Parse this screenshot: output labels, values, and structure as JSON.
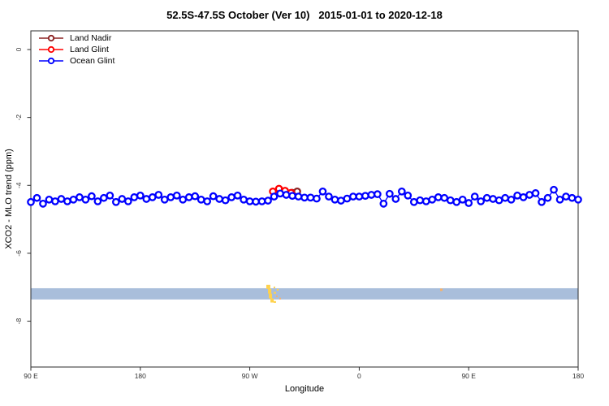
{
  "title": "52.5S-47.5S October (Ver 10)   2015-01-01 to 2020-12-18",
  "x_axis": {
    "label": "Longitude",
    "ticks": [
      {
        "pos": 0,
        "label": "90 E"
      },
      {
        "pos": 90,
        "label": "180"
      },
      {
        "pos": 180,
        "label": "90 W"
      },
      {
        "pos": 270,
        "label": "0"
      },
      {
        "pos": 360,
        "label": "90 E"
      },
      {
        "pos": 450,
        "label": "180"
      }
    ]
  },
  "y_axis": {
    "label": "XCO2 - MLO trend (ppm)",
    "ticks": [
      {
        "value": 0,
        "label": "0"
      },
      {
        "value": -2,
        "label": "-2"
      },
      {
        "value": -4,
        "label": "-4"
      },
      {
        "value": -6,
        "label": "-6"
      },
      {
        "value": -8,
        "label": "-8"
      }
    ]
  },
  "legend": {
    "items": [
      {
        "label": "Land Nadir",
        "color": "#8b2222"
      },
      {
        "label": "Land Glint",
        "color": "#ff0000"
      },
      {
        "label": "Ocean Glint",
        "color": "#0000ff"
      }
    ]
  },
  "chart_data": {
    "type": "scatter",
    "title": "52.5S-47.5S October (Ver 10)   2015-01-01 to 2020-12-18",
    "xlabel": "Longitude",
    "ylabel": "XCO2 - MLO trend (ppm)",
    "xlim": [
      0,
      450
    ],
    "ylim": [
      -9.35,
      0.55
    ],
    "x_axis_note": "degrees eastward from left edge; axis wraps 90E > 180 > 90W > 0 > 90E > 180",
    "grid": false,
    "legend_position": "top-left",
    "series": [
      {
        "name": "Land Nadir",
        "color": "#8b2222",
        "x": [
          215,
          219
        ],
        "values": [
          -4.22,
          -4.18
        ]
      },
      {
        "name": "Land Glint",
        "color": "#ff0000",
        "x": [
          199,
          204,
          209,
          214
        ],
        "values": [
          -4.18,
          -4.1,
          -4.16,
          -4.22
        ]
      },
      {
        "name": "Ocean Glint",
        "color": "#0000ff",
        "x_start": 0,
        "x_step": 5,
        "values": [
          -4.49,
          -4.37,
          -4.54,
          -4.42,
          -4.47,
          -4.4,
          -4.47,
          -4.42,
          -4.35,
          -4.42,
          -4.32,
          -4.47,
          -4.37,
          -4.3,
          -4.49,
          -4.4,
          -4.47,
          -4.35,
          -4.3,
          -4.4,
          -4.35,
          -4.28,
          -4.42,
          -4.35,
          -4.3,
          -4.42,
          -4.35,
          -4.32,
          -4.42,
          -4.47,
          -4.32,
          -4.4,
          -4.44,
          -4.35,
          -4.3,
          -4.42,
          -4.47,
          -4.48,
          -4.47,
          -4.45,
          -4.33,
          -4.24,
          -4.28,
          -4.31,
          -4.33,
          -4.36,
          -4.36,
          -4.39,
          -4.18,
          -4.33,
          -4.42,
          -4.45,
          -4.39,
          -4.33,
          -4.33,
          -4.31,
          -4.28,
          -4.26,
          -4.54,
          -4.25,
          -4.4,
          -4.18,
          -4.3,
          -4.49,
          -4.44,
          -4.47,
          -4.42,
          -4.35,
          -4.37,
          -4.44,
          -4.49,
          -4.42,
          -4.52,
          -4.33,
          -4.47,
          -4.37,
          -4.4,
          -4.44,
          -4.37,
          -4.42,
          -4.3,
          -4.35,
          -4.28,
          -4.23,
          -4.49,
          -4.37,
          -4.13,
          -4.42,
          -4.33,
          -4.37,
          -4.42
        ]
      }
    ],
    "map_strip": {
      "description": "latitude-band map: ocean band with land in yellow",
      "ocean_color": "#a9bedb",
      "land_color": "#ffd24d",
      "land_color2": "#f6b26b",
      "y_top": -7.03,
      "y_bottom": -7.36,
      "land_patches": [
        {
          "x": 193.6,
          "y": -6.93,
          "w": 3.3,
          "h": 0.12,
          "c": 1
        },
        {
          "x": 195.0,
          "y": -7.05,
          "w": 2.7,
          "h": 0.14,
          "c": 1
        },
        {
          "x": 195.6,
          "y": -7.19,
          "w": 2.7,
          "h": 0.14,
          "c": 1
        },
        {
          "x": 197.0,
          "y": -7.33,
          "w": 2.7,
          "h": 0.12,
          "c": 1
        },
        {
          "x": 199.6,
          "y": -6.98,
          "w": 1.3,
          "h": 0.05,
          "c": 1
        },
        {
          "x": 202.3,
          "y": -7.05,
          "w": 1.3,
          "h": 0.05,
          "c": 1
        },
        {
          "x": 199.6,
          "y": -7.14,
          "w": 2.0,
          "h": 0.05,
          "c": 1
        },
        {
          "x": 201.6,
          "y": -7.24,
          "w": 1.3,
          "h": 0.05,
          "c": 2
        },
        {
          "x": 204.3,
          "y": -7.31,
          "w": 1.3,
          "h": 0.05,
          "c": 2
        },
        {
          "x": 199.6,
          "y": -7.41,
          "w": 2.0,
          "h": 0.05,
          "c": 1
        },
        {
          "x": 336.5,
          "y": -7.04,
          "w": 2.0,
          "h": 0.07,
          "c": 2
        }
      ]
    }
  }
}
